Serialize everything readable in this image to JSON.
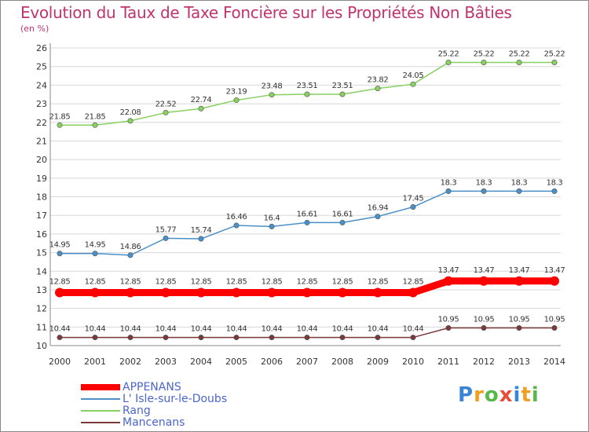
{
  "chart_data": {
    "type": "line",
    "title": "Evolution du Taux de Taxe Foncière sur les Propriétés Non Bâties",
    "subtitle": "(en %)",
    "xlabel": "",
    "ylabel": "",
    "x": [
      "2000",
      "2001",
      "2002",
      "2003",
      "2004",
      "2005",
      "2006",
      "2007",
      "2008",
      "2009",
      "2010",
      "2011",
      "2012",
      "2013",
      "2014"
    ],
    "ylim": [
      10,
      26
    ],
    "yticks": [
      "10",
      "11",
      "12",
      "13",
      "14",
      "15",
      "16",
      "17",
      "18",
      "19",
      "20",
      "21",
      "22",
      "23",
      "24",
      "25",
      "26"
    ],
    "grid": "horizontal",
    "legend_position": "bottom-left",
    "series": [
      {
        "name": "APPENANS",
        "color": "#ff0000",
        "values": [
          12.85,
          12.85,
          12.85,
          12.85,
          12.85,
          12.85,
          12.85,
          12.85,
          12.85,
          12.85,
          12.85,
          13.47,
          13.47,
          13.47,
          13.47
        ],
        "labels": [
          "12.85",
          "12.85",
          "12.85",
          "12.85",
          "12.85",
          "12.85",
          "12.85",
          "12.85",
          "12.85",
          "12.85",
          "12.85",
          "13.47",
          "13.47",
          "13.47",
          "13.47"
        ]
      },
      {
        "name": "L' Isle-sur-le-Doubs",
        "color": "#4a90c8",
        "values": [
          14.95,
          14.95,
          14.86,
          15.77,
          15.74,
          16.46,
          16.4,
          16.61,
          16.61,
          16.94,
          17.45,
          18.3,
          18.3,
          18.3,
          18.3
        ],
        "labels": [
          "14.95",
          "14.95",
          "14.86",
          "15.77",
          "15.74",
          "16.46",
          "16.4",
          "16.61",
          "16.61",
          "16.94",
          "17.45",
          "18.3",
          "18.3",
          "18.3",
          "18.3"
        ]
      },
      {
        "name": "Rang",
        "color": "#88d060",
        "values": [
          21.85,
          21.85,
          22.08,
          22.52,
          22.74,
          23.19,
          23.48,
          23.51,
          23.51,
          23.82,
          24.05,
          25.22,
          25.22,
          25.22,
          25.22
        ],
        "labels": [
          "21.85",
          "21.85",
          "22.08",
          "22.52",
          "22.74",
          "23.19",
          "23.48",
          "23.51",
          "23.51",
          "23.82",
          "24.05",
          "25.22",
          "25.22",
          "25.22",
          "25.22"
        ]
      },
      {
        "name": "Mancenans",
        "color": "#7a3a3a",
        "values": [
          10.44,
          10.44,
          10.44,
          10.44,
          10.44,
          10.44,
          10.44,
          10.44,
          10.44,
          10.44,
          10.44,
          10.95,
          10.95,
          10.95,
          10.95
        ],
        "labels": [
          "10.44",
          "10.44",
          "10.44",
          "10.44",
          "10.44",
          "10.44",
          "10.44",
          "10.44",
          "10.44",
          "10.44",
          "10.44",
          "10.95",
          "10.95",
          "10.95",
          "10.95"
        ]
      }
    ]
  },
  "logo": {
    "letters": [
      "P",
      "r",
      "o",
      "x",
      "i",
      "t",
      "i"
    ],
    "colors": [
      "#3a86d6",
      "#f0a020",
      "#58b848",
      "#e84d3a",
      "#3a86d6",
      "#f0a020",
      "#58b848"
    ]
  },
  "colors": {
    "title": "#c0336e",
    "axis_text": "#333333",
    "grid": "#d8d8d8",
    "legend_text": "#4a66cc"
  }
}
